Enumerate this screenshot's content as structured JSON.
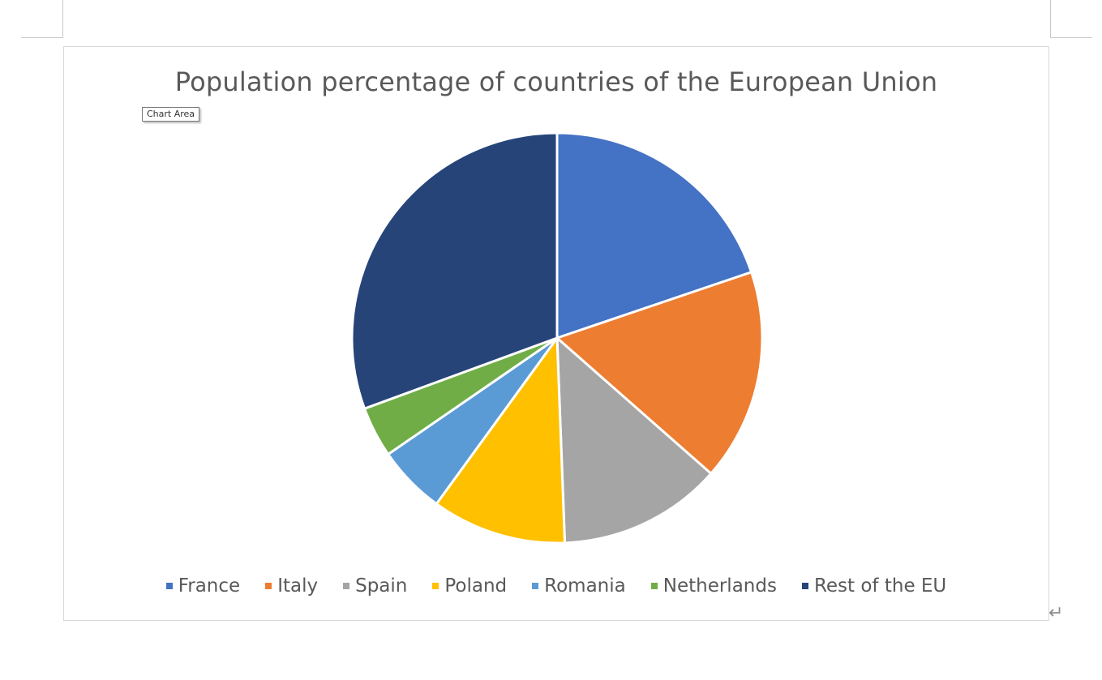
{
  "tooltip": {
    "label": "Chart Area"
  },
  "paragraph_mark": "↵",
  "chart_data": {
    "type": "pie",
    "title": "Population percentage of countries of the European Union",
    "categories": [
      "France",
      "Italy",
      "Spain",
      "Poland",
      "Romania",
      "Netherlands",
      "Rest of the EU"
    ],
    "values": [
      19.8,
      16.7,
      12.9,
      10.6,
      5.4,
      4.0,
      30.6
    ],
    "unit": "%",
    "colors": [
      "#4472C4",
      "#ED7D31",
      "#A5A5A5",
      "#FFC000",
      "#5B9BD5",
      "#70AD47",
      "#264478"
    ],
    "legend_position": "bottom",
    "start_angle": "12 o'clock",
    "direction": "clockwise"
  }
}
